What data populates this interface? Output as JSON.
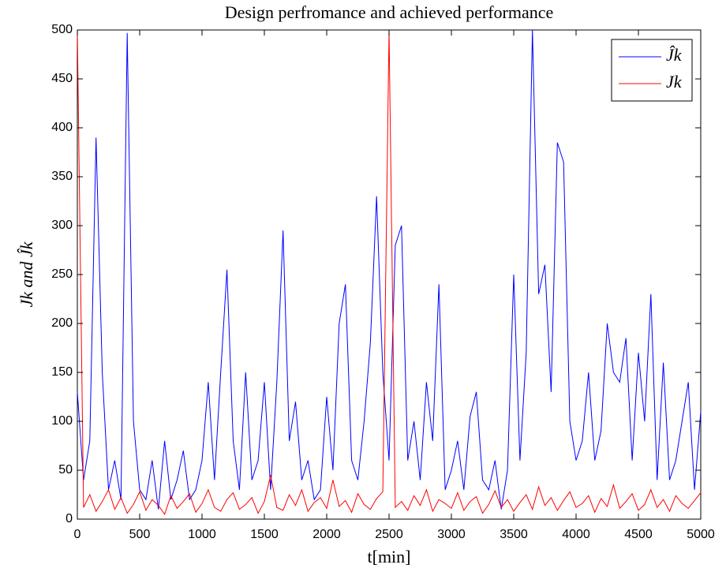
{
  "chart_data": {
    "type": "line",
    "title": "Design perfromance and achieved performance",
    "xlabel": "t[min]",
    "ylabel": "Jk and Ĵk",
    "x": [
      0,
      50,
      100,
      150,
      200,
      250,
      300,
      350,
      400,
      450,
      500,
      550,
      600,
      650,
      700,
      750,
      800,
      850,
      900,
      950,
      1000,
      1050,
      1100,
      1150,
      1200,
      1250,
      1300,
      1350,
      1400,
      1450,
      1500,
      1550,
      1600,
      1650,
      1700,
      1750,
      1800,
      1850,
      1900,
      1950,
      2000,
      2050,
      2100,
      2150,
      2200,
      2250,
      2300,
      2350,
      2400,
      2450,
      2500,
      2550,
      2600,
      2650,
      2700,
      2750,
      2800,
      2850,
      2900,
      2950,
      3000,
      3050,
      3100,
      3150,
      3200,
      3250,
      3300,
      3350,
      3400,
      3450,
      3500,
      3550,
      3600,
      3650,
      3700,
      3750,
      3800,
      3850,
      3900,
      3950,
      4000,
      4050,
      4100,
      4150,
      4200,
      4250,
      4300,
      4350,
      4400,
      4450,
      4500,
      4550,
      4600,
      4650,
      4700,
      4750,
      4800,
      4850,
      4900,
      4950,
      5000
    ],
    "series": [
      {
        "name": "Ĵk",
        "color": "#0000ff",
        "values": [
          130,
          40,
          80,
          390,
          150,
          30,
          60,
          20,
          497,
          100,
          30,
          20,
          60,
          10,
          80,
          20,
          40,
          70,
          20,
          30,
          60,
          140,
          40,
          150,
          255,
          80,
          30,
          150,
          40,
          60,
          140,
          30,
          140,
          295,
          80,
          120,
          40,
          60,
          20,
          30,
          125,
          50,
          200,
          240,
          60,
          40,
          100,
          180,
          330,
          150,
          60,
          280,
          300,
          60,
          100,
          40,
          140,
          80,
          240,
          30,
          50,
          80,
          30,
          105,
          130,
          40,
          30,
          60,
          10,
          50,
          250,
          60,
          170,
          500,
          230,
          260,
          130,
          385,
          365,
          100,
          60,
          80,
          150,
          60,
          90,
          200,
          150,
          140,
          185,
          60,
          170,
          100,
          230,
          40,
          160,
          40,
          60,
          100,
          140,
          30,
          110
        ]
      },
      {
        "name": "Jk",
        "color": "#ff0000",
        "values": [
          500,
          12,
          25,
          8,
          18,
          30,
          10,
          22,
          6,
          15,
          28,
          9,
          20,
          14,
          5,
          24,
          11,
          18,
          26,
          7,
          16,
          30,
          12,
          8,
          20,
          27,
          10,
          15,
          22,
          6,
          18,
          45,
          12,
          9,
          25,
          14,
          30,
          8,
          17,
          22,
          11,
          40,
          13,
          19,
          7,
          26,
          15,
          10,
          21,
          28,
          500,
          12,
          18,
          9,
          24,
          14,
          30,
          8,
          20,
          16,
          11,
          27,
          9,
          18,
          23,
          6,
          15,
          29,
          12,
          20,
          8,
          17,
          25,
          10,
          33,
          14,
          22,
          9,
          19,
          28,
          12,
          16,
          24,
          7,
          21,
          13,
          35,
          11,
          18,
          26,
          9,
          15,
          30,
          12,
          20,
          8,
          24,
          16,
          11,
          19,
          27
        ]
      }
    ],
    "xlim": [
      0,
      5000
    ],
    "xticks": [
      0,
      500,
      1000,
      1500,
      2000,
      2500,
      3000,
      3500,
      4000,
      4500,
      5000
    ],
    "ylim": [
      0,
      500
    ],
    "yticks": [
      0,
      50,
      100,
      150,
      200,
      250,
      300,
      350,
      400,
      450,
      500
    ],
    "legend": "upper right",
    "grid": false
  }
}
